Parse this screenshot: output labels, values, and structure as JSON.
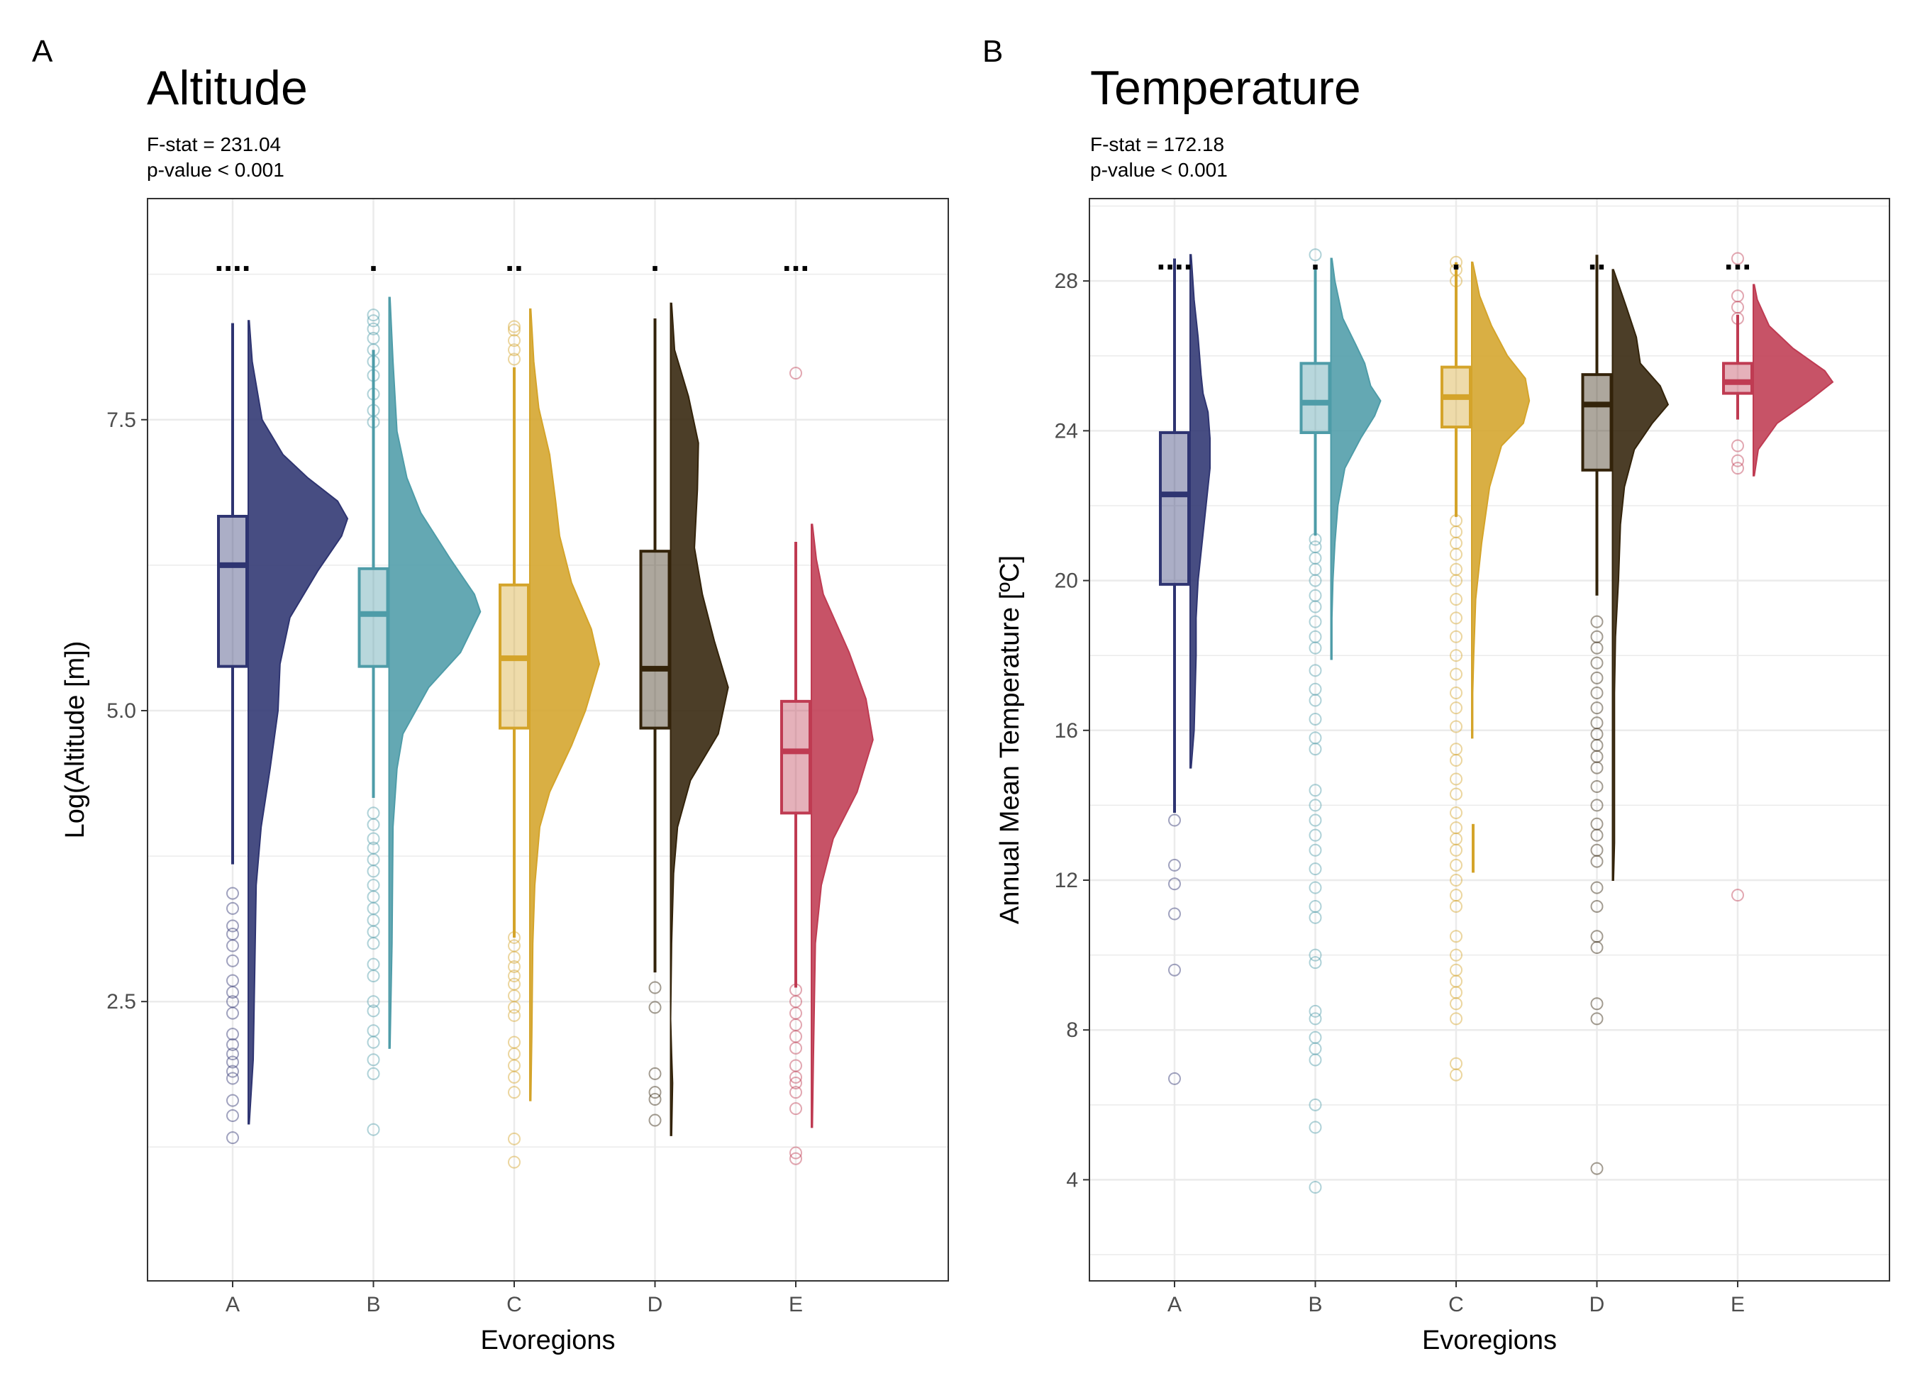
{
  "panels": [
    {
      "tag": "A",
      "title": "Altitude",
      "subtitle1": "F-stat = 231.04",
      "subtitle2": "p-value < 0.001",
      "chart_data": {
        "type": "raincloud",
        "xlabel": "Evoregions",
        "ylabel": "Log(Altitude [m])",
        "ylim": [
          0.1,
          9.4
        ],
        "yticks": [
          2.5,
          5.0,
          7.5
        ],
        "ytick_labels": [
          "2.5",
          "5.0",
          "7.5"
        ],
        "grid": true,
        "categories": [
          "A",
          "B",
          "C",
          "D",
          "E"
        ],
        "colors": [
          "#2e3471",
          "#4e9ca8",
          "#d4a42a",
          "#33230a",
          "#bf3b52"
        ],
        "significance": [
          "....",
          ".",
          "..",
          ".",
          "..."
        ],
        "box": [
          {
            "q1": 5.38,
            "median": 6.25,
            "q3": 6.67,
            "whisker_low": 3.68,
            "whisker_high": 8.33
          },
          {
            "q1": 5.38,
            "median": 5.83,
            "q3": 6.22,
            "whisker_low": 4.25,
            "whisker_high": 8.1
          },
          {
            "q1": 4.85,
            "median": 5.45,
            "q3": 6.08,
            "whisker_low": 3.05,
            "whisker_high": 7.95
          },
          {
            "q1": 4.85,
            "median": 5.36,
            "q3": 6.37,
            "whisker_low": 2.75,
            "whisker_high": 8.37
          },
          {
            "q1": 4.12,
            "median": 4.65,
            "q3": 5.08,
            "whisker_low": 2.62,
            "whisker_high": 6.45
          }
        ],
        "density": [
          [
            [
              1.45,
              0.01
            ],
            [
              2.0,
              0.05
            ],
            [
              3.0,
              0.07
            ],
            [
              3.5,
              0.08
            ],
            [
              4.0,
              0.13
            ],
            [
              4.5,
              0.22
            ],
            [
              5.0,
              0.3
            ],
            [
              5.4,
              0.32
            ],
            [
              5.8,
              0.42
            ],
            [
              6.2,
              0.7
            ],
            [
              6.5,
              0.94
            ],
            [
              6.65,
              1.0
            ],
            [
              6.8,
              0.9
            ],
            [
              7.0,
              0.6
            ],
            [
              7.2,
              0.35
            ],
            [
              7.5,
              0.14
            ],
            [
              8.0,
              0.04
            ],
            [
              8.35,
              0.01
            ]
          ],
          [
            [
              2.1,
              0.01
            ],
            [
              3.0,
              0.03
            ],
            [
              4.0,
              0.04
            ],
            [
              4.5,
              0.08
            ],
            [
              4.8,
              0.14
            ],
            [
              5.2,
              0.4
            ],
            [
              5.5,
              0.72
            ],
            [
              5.85,
              0.92
            ],
            [
              6.0,
              0.86
            ],
            [
              6.3,
              0.62
            ],
            [
              6.7,
              0.32
            ],
            [
              7.0,
              0.18
            ],
            [
              7.4,
              0.08
            ],
            [
              8.0,
              0.04
            ],
            [
              8.55,
              0.01
            ]
          ],
          [
            [
              1.65,
              0.01
            ],
            [
              2.2,
              0.02
            ],
            [
              3.0,
              0.03
            ],
            [
              3.5,
              0.05
            ],
            [
              4.0,
              0.1
            ],
            [
              4.3,
              0.2
            ],
            [
              4.7,
              0.42
            ],
            [
              5.0,
              0.56
            ],
            [
              5.4,
              0.7
            ],
            [
              5.7,
              0.62
            ],
            [
              6.1,
              0.42
            ],
            [
              6.5,
              0.3
            ],
            [
              6.8,
              0.26
            ],
            [
              7.2,
              0.2
            ],
            [
              7.6,
              0.09
            ],
            [
              8.0,
              0.04
            ],
            [
              8.45,
              0.01
            ]
          ],
          [
            [
              1.35,
              0.01
            ],
            [
              1.8,
              0.02
            ],
            [
              2.05,
              0.01
            ],
            [
              2.35,
              0.0
            ],
            [
              3.0,
              0.01
            ],
            [
              3.6,
              0.03
            ],
            [
              4.0,
              0.07
            ],
            [
              4.4,
              0.2
            ],
            [
              4.8,
              0.48
            ],
            [
              5.2,
              0.58
            ],
            [
              5.6,
              0.44
            ],
            [
              6.0,
              0.32
            ],
            [
              6.4,
              0.24
            ],
            [
              6.9,
              0.27
            ],
            [
              7.3,
              0.28
            ],
            [
              7.7,
              0.18
            ],
            [
              8.1,
              0.04
            ],
            [
              8.5,
              0.01
            ]
          ],
          [
            [
              1.42,
              0.01
            ],
            [
              2.0,
              0.02
            ],
            [
              3.0,
              0.04
            ],
            [
              3.5,
              0.1
            ],
            [
              3.9,
              0.22
            ],
            [
              4.3,
              0.46
            ],
            [
              4.75,
              0.62
            ],
            [
              5.1,
              0.55
            ],
            [
              5.5,
              0.38
            ],
            [
              6.0,
              0.12
            ],
            [
              6.3,
              0.05
            ],
            [
              6.6,
              0.01
            ]
          ]
        ],
        "outliers": [
          [
            1.33,
            1.52,
            1.65,
            1.84,
            1.9,
            1.98,
            2.05,
            2.13,
            2.22,
            2.4,
            2.5,
            2.58,
            2.68,
            2.85,
            2.98,
            3.08,
            3.15,
            3.3,
            3.43
          ],
          [
            1.4,
            1.88,
            2.0,
            2.15,
            2.25,
            2.42,
            2.5,
            2.72,
            2.82,
            3.0,
            3.1,
            3.2,
            3.3,
            3.4,
            3.5,
            3.62,
            3.72,
            3.82,
            3.9,
            4.02,
            4.12,
            7.48,
            7.58,
            7.72,
            7.88,
            8.0,
            8.1,
            8.2,
            8.28,
            8.35,
            8.4
          ],
          [
            1.12,
            1.32,
            1.72,
            1.85,
            1.95,
            2.05,
            2.15,
            2.38,
            2.45,
            2.55,
            2.65,
            2.72,
            2.8,
            2.88,
            2.98,
            3.05,
            8.02,
            8.1,
            8.18,
            8.27,
            8.3
          ],
          [
            1.48,
            1.66,
            1.72,
            1.88,
            2.45,
            2.62
          ],
          [
            1.15,
            1.2,
            1.58,
            1.72,
            1.8,
            1.85,
            1.95,
            2.1,
            2.2,
            2.3,
            2.4,
            2.5,
            2.6,
            7.9
          ]
        ]
      }
    },
    {
      "tag": "B",
      "title": "Temperature",
      "subtitle1": "F-stat = 172.18",
      "subtitle2": "p-value < 0.001",
      "chart_data": {
        "type": "raincloud",
        "xlabel": "Evoregions",
        "ylabel": "Annual Mean Temperature [ºC]",
        "ylim": [
          1.3,
          30.2
        ],
        "yticks": [
          4,
          8,
          12,
          16,
          20,
          24,
          28
        ],
        "ytick_labels": [
          "4",
          "8",
          "12",
          "16",
          "20",
          "24",
          "28"
        ],
        "grid": true,
        "categories": [
          "A",
          "B",
          "C",
          "D",
          "E"
        ],
        "colors": [
          "#2e3471",
          "#4e9ca8",
          "#d4a42a",
          "#33230a",
          "#bf3b52"
        ],
        "significance": [
          "....",
          ".",
          ".",
          "..",
          "..."
        ],
        "box": [
          {
            "q1": 19.9,
            "median": 22.3,
            "q3": 23.95,
            "whisker_low": 13.8,
            "whisker_high": 28.6
          },
          {
            "q1": 23.95,
            "median": 24.75,
            "q3": 25.8,
            "whisker_low": 21.2,
            "whisker_high": 28.4
          },
          {
            "q1": 24.1,
            "median": 24.9,
            "q3": 25.7,
            "whisker_low": 21.7,
            "whisker_high": 28.5
          },
          {
            "q1": 22.95,
            "median": 24.7,
            "q3": 25.5,
            "whisker_low": 19.6,
            "whisker_high": 28.7
          },
          {
            "q1": 25.0,
            "median": 25.3,
            "q3": 25.8,
            "whisker_low": 24.3,
            "whisker_high": 27.1
          }
        ],
        "density": [
          [
            [
              15.0,
              0.01
            ],
            [
              16.0,
              0.04
            ],
            [
              17.0,
              0.05
            ],
            [
              18.0,
              0.06
            ],
            [
              19.0,
              0.06
            ],
            [
              20.0,
              0.08
            ],
            [
              21.0,
              0.12
            ],
            [
              22.0,
              0.16
            ],
            [
              23.0,
              0.2
            ],
            [
              23.8,
              0.2
            ],
            [
              24.5,
              0.18
            ],
            [
              25.0,
              0.13
            ],
            [
              25.5,
              0.11
            ],
            [
              26.5,
              0.08
            ],
            [
              27.5,
              0.04
            ],
            [
              28.7,
              0.01
            ]
          ],
          [
            [
              17.9,
              0.01
            ],
            [
              19.0,
              0.01
            ],
            [
              20.0,
              0.02
            ],
            [
              21.0,
              0.04
            ],
            [
              22.0,
              0.07
            ],
            [
              23.0,
              0.14
            ],
            [
              23.8,
              0.3
            ],
            [
              24.4,
              0.44
            ],
            [
              24.8,
              0.5
            ],
            [
              25.2,
              0.4
            ],
            [
              25.8,
              0.34
            ],
            [
              26.3,
              0.25
            ],
            [
              27.0,
              0.12
            ],
            [
              28.0,
              0.04
            ],
            [
              28.6,
              0.01
            ]
          ],
          [
            [
              15.8,
              0.01
            ],
            [
              17.0,
              0.01
            ],
            [
              18.0,
              0.02
            ],
            [
              19.5,
              0.04
            ],
            [
              21.0,
              0.1
            ],
            [
              22.5,
              0.18
            ],
            [
              23.6,
              0.3
            ],
            [
              24.2,
              0.52
            ],
            [
              24.8,
              0.58
            ],
            [
              25.4,
              0.54
            ],
            [
              26.0,
              0.36
            ],
            [
              26.8,
              0.2
            ],
            [
              27.6,
              0.08
            ],
            [
              28.5,
              0.01
            ]
          ],
          [
            [
              12.0,
              0.01
            ],
            [
              13.0,
              0.02
            ],
            [
              14.0,
              0.02
            ],
            [
              15.5,
              0.02
            ],
            [
              17.0,
              0.02
            ],
            [
              18.5,
              0.03
            ],
            [
              20.0,
              0.06
            ],
            [
              21.5,
              0.08
            ],
            [
              22.5,
              0.12
            ],
            [
              23.5,
              0.22
            ],
            [
              24.2,
              0.4
            ],
            [
              24.7,
              0.56
            ],
            [
              25.2,
              0.48
            ],
            [
              25.8,
              0.28
            ],
            [
              26.5,
              0.24
            ],
            [
              27.3,
              0.14
            ],
            [
              28.3,
              0.01
            ]
          ],
          [
            [
              22.8,
              0.01
            ],
            [
              23.5,
              0.05
            ],
            [
              24.2,
              0.24
            ],
            [
              24.8,
              0.56
            ],
            [
              25.3,
              0.8
            ],
            [
              25.6,
              0.72
            ],
            [
              26.2,
              0.4
            ],
            [
              26.8,
              0.16
            ],
            [
              27.5,
              0.04
            ],
            [
              27.9,
              0.01
            ]
          ]
        ],
        "density_extra": [
          null,
          null,
          {
            "lo": 12.2,
            "hi": 13.5
          },
          null,
          null
        ],
        "outliers": [
          [
            6.7,
            9.6,
            11.1,
            11.9,
            12.4,
            13.6
          ],
          [
            3.8,
            5.4,
            6.0,
            7.2,
            7.5,
            7.8,
            8.3,
            8.5,
            9.8,
            10.0,
            11.0,
            11.3,
            11.8,
            12.3,
            12.8,
            13.2,
            13.6,
            14.0,
            14.4,
            15.5,
            15.8,
            16.3,
            16.8,
            17.1,
            17.6,
            18.2,
            18.5,
            18.9,
            19.3,
            19.6,
            20.0,
            20.3,
            20.6,
            20.9,
            21.1,
            28.7
          ],
          [
            6.8,
            7.1,
            8.3,
            8.7,
            9.0,
            9.3,
            9.6,
            10.0,
            10.5,
            11.3,
            11.6,
            12.0,
            12.4,
            12.8,
            13.1,
            13.4,
            13.8,
            14.3,
            14.7,
            15.2,
            15.5,
            16.1,
            16.6,
            17.0,
            17.5,
            18.0,
            18.5,
            19.0,
            19.5,
            20.0,
            20.3,
            20.7,
            21.0,
            21.3,
            21.6,
            28.0,
            28.3,
            28.5
          ],
          [
            4.3,
            8.3,
            8.7,
            10.2,
            10.5,
            11.3,
            11.8,
            12.5,
            12.8,
            13.2,
            13.5,
            14.0,
            14.5,
            15.0,
            15.3,
            15.6,
            15.9,
            16.2,
            16.6,
            17.0,
            17.4,
            17.8,
            18.2,
            18.5,
            18.9
          ],
          [
            11.6,
            23.0,
            23.2,
            23.6,
            27.0,
            27.3,
            27.6,
            28.6
          ]
        ]
      }
    }
  ]
}
